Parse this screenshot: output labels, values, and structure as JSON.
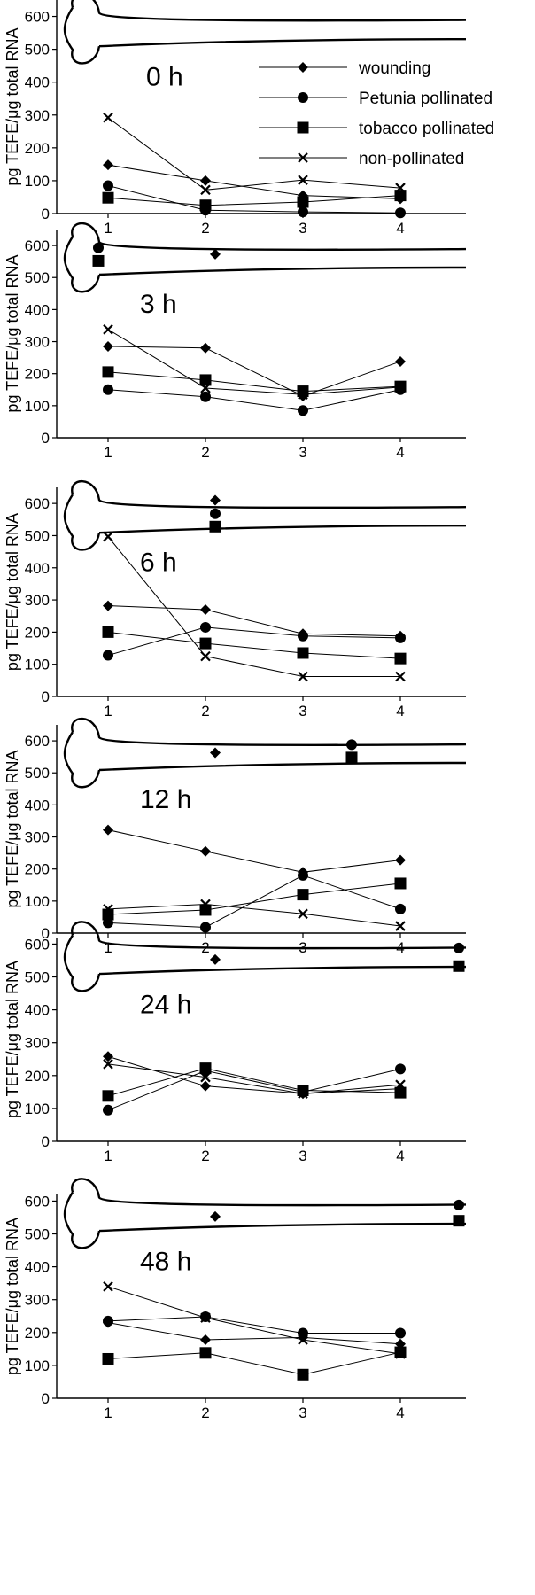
{
  "figure": {
    "ylabel": "pg TEFE/μg total RNA",
    "legend": [
      {
        "name": "wounding",
        "marker": "diamond"
      },
      {
        "name": "Petunia pollinated",
        "marker": "circle"
      },
      {
        "name": "tobacco pollinated",
        "marker": "square"
      },
      {
        "name": "non-pollinated",
        "marker": "cross"
      }
    ],
    "colors": {
      "ink": "#000000",
      "background": "#ffffff"
    }
  },
  "chart_data": [
    {
      "type": "line",
      "title": "0 h",
      "ylabel": "pg TEFE/μg total RNA",
      "categories": [
        "1",
        "2",
        "3",
        "4"
      ],
      "ylim": [
        0,
        650
      ],
      "yticks": [
        0,
        100,
        200,
        300,
        400,
        500,
        600
      ],
      "series": [
        {
          "name": "wounding",
          "values": [
            148,
            100,
            55,
            45
          ]
        },
        {
          "name": "Petunia pollinated",
          "values": [
            85,
            10,
            5,
            2
          ]
        },
        {
          "name": "tobacco pollinated",
          "values": [
            48,
            25,
            35,
            55
          ]
        },
        {
          "name": "non-pollinated",
          "values": [
            292,
            72,
            102,
            78
          ]
        }
      ],
      "extra_points": []
    },
    {
      "type": "line",
      "title": "3 h",
      "ylabel": "pg TEFE/μg total RNA",
      "categories": [
        "1",
        "2",
        "3",
        "4"
      ],
      "ylim": [
        0,
        650
      ],
      "yticks": [
        0,
        100,
        200,
        300,
        400,
        500,
        600
      ],
      "series": [
        {
          "name": "wounding",
          "values": [
            285,
            280,
            130,
            238
          ]
        },
        {
          "name": "Petunia pollinated",
          "values": [
            150,
            128,
            85,
            150
          ]
        },
        {
          "name": "tobacco pollinated",
          "values": [
            205,
            180,
            145,
            160
          ]
        },
        {
          "name": "non-pollinated",
          "values": [
            338,
            155,
            135,
            158
          ]
        }
      ],
      "extra_points": [
        {
          "series": "Petunia pollinated",
          "x": 0.9,
          "y": 593
        },
        {
          "series": "tobacco pollinated",
          "x": 0.9,
          "y": 552
        },
        {
          "series": "wounding",
          "x": 2.1,
          "y": 573
        }
      ]
    },
    {
      "type": "line",
      "title": "6 h",
      "ylabel": "pg TEFE/μg total RNA",
      "categories": [
        "1",
        "2",
        "3",
        "4"
      ],
      "ylim": [
        0,
        650
      ],
      "yticks": [
        0,
        100,
        200,
        300,
        400,
        500,
        600
      ],
      "series": [
        {
          "name": "wounding",
          "values": [
            282,
            270,
            195,
            188
          ]
        },
        {
          "name": "Petunia pollinated",
          "values": [
            128,
            215,
            188,
            182
          ]
        },
        {
          "name": "tobacco pollinated",
          "values": [
            200,
            165,
            135,
            118
          ]
        },
        {
          "name": "non-pollinated",
          "values": [
            497,
            125,
            62,
            62
          ]
        }
      ],
      "extra_points": [
        {
          "series": "wounding",
          "x": 2.1,
          "y": 610
        },
        {
          "series": "Petunia pollinated",
          "x": 2.1,
          "y": 568
        },
        {
          "series": "tobacco pollinated",
          "x": 2.1,
          "y": 528
        }
      ]
    },
    {
      "type": "line",
      "title": "12 h",
      "ylabel": "pg TEFE/μg total RNA",
      "categories": [
        "1",
        "2",
        "3",
        "4"
      ],
      "ylim": [
        0,
        650
      ],
      "yticks": [
        0,
        100,
        200,
        300,
        400,
        500,
        600
      ],
      "series": [
        {
          "name": "wounding",
          "values": [
            322,
            255,
            190,
            228
          ]
        },
        {
          "name": "Petunia pollinated",
          "values": [
            32,
            18,
            180,
            75
          ]
        },
        {
          "name": "tobacco pollinated",
          "values": [
            58,
            72,
            120,
            155
          ]
        },
        {
          "name": "non-pollinated",
          "values": [
            75,
            90,
            60,
            22
          ]
        }
      ],
      "extra_points": [
        {
          "series": "wounding",
          "x": 2.1,
          "y": 563
        },
        {
          "series": "Petunia pollinated",
          "x": 3.5,
          "y": 588
        },
        {
          "series": "tobacco pollinated",
          "x": 3.5,
          "y": 548
        }
      ]
    },
    {
      "type": "line",
      "title": "24 h",
      "ylabel": "pg TEFE/μg total RNA",
      "categories": [
        "1",
        "2",
        "3",
        "4"
      ],
      "ylim": [
        0,
        620
      ],
      "yticks": [
        0,
        100,
        200,
        300,
        400,
        500,
        600
      ],
      "series": [
        {
          "name": "wounding",
          "values": [
            258,
            168,
            145,
            160
          ]
        },
        {
          "name": "Petunia pollinated",
          "values": [
            95,
            215,
            150,
            220
          ]
        },
        {
          "name": "tobacco pollinated",
          "values": [
            138,
            222,
            155,
            148
          ]
        },
        {
          "name": "non-pollinated",
          "values": [
            235,
            195,
            145,
            172
          ]
        }
      ],
      "extra_points": [
        {
          "series": "wounding",
          "x": 2.1,
          "y": 553
        },
        {
          "series": "Petunia pollinated",
          "x": 4.6,
          "y": 588
        },
        {
          "series": "tobacco pollinated",
          "x": 4.6,
          "y": 533
        }
      ]
    },
    {
      "type": "line",
      "title": "48 h",
      "ylabel": "pg TEFE/μg total RNA",
      "categories": [
        "1",
        "2",
        "3",
        "4"
      ],
      "ylim": [
        0,
        620
      ],
      "yticks": [
        0,
        100,
        200,
        300,
        400,
        500,
        600
      ],
      "series": [
        {
          "name": "wounding",
          "values": [
            230,
            178,
            185,
            165
          ]
        },
        {
          "name": "Petunia pollinated",
          "values": [
            235,
            248,
            198,
            198
          ]
        },
        {
          "name": "tobacco pollinated",
          "values": [
            120,
            138,
            72,
            140
          ]
        },
        {
          "name": "non-pollinated",
          "values": [
            340,
            245,
            178,
            135
          ]
        }
      ],
      "extra_points": [
        {
          "series": "wounding",
          "x": 2.1,
          "y": 553
        },
        {
          "series": "Petunia pollinated",
          "x": 4.6,
          "y": 588
        },
        {
          "series": "tobacco pollinated",
          "x": 4.6,
          "y": 540
        }
      ]
    }
  ]
}
